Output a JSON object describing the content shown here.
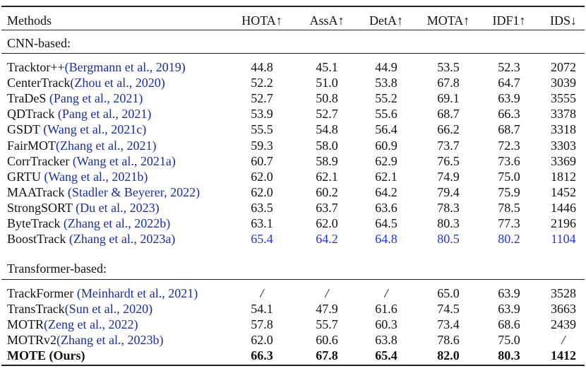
{
  "headers": [
    "Methods",
    "HOTA↑",
    "AssA↑",
    "DetA↑",
    "MOTA↑",
    "IDF1↑",
    "IDS↓"
  ],
  "sections": [
    {
      "title": "CNN-based:",
      "rows": [
        {
          "name": "Tracktor++",
          "cite": "(Bergmann et al., 2019)",
          "values": [
            "44.8",
            "45.1",
            "44.9",
            "53.5",
            "52.3",
            "2072"
          ]
        },
        {
          "name": "CenterTrack",
          "cite": "(Zhou et al., 2020)",
          "values": [
            "52.2",
            "51.0",
            "53.8",
            "67.8",
            "64.7",
            "3039"
          ]
        },
        {
          "name": "TraDeS ",
          "cite": "(Pang et al., 2021)",
          "values": [
            "52.7",
            "50.8",
            "55.2",
            "69.1",
            "63.9",
            "3555"
          ]
        },
        {
          "name": "QDTrack ",
          "cite": "(Pang et al., 2021)",
          "values": [
            "53.9",
            "52.7",
            "55.6",
            "68.7",
            "66.3",
            "3378"
          ]
        },
        {
          "name": "GSDT ",
          "cite": "(Wang et al., 2021c)",
          "values": [
            "55.5",
            "54.8",
            "56.4",
            "66.2",
            "68.7",
            "3318"
          ]
        },
        {
          "name": "FairMOT",
          "cite": "(Zhang et al., 2021)",
          "values": [
            "59.3",
            "58.0",
            "60.9",
            "73.7",
            "72.3",
            "3303"
          ]
        },
        {
          "name": "CorrTracker ",
          "cite": "(Wang et al., 2021a)",
          "values": [
            "60.7",
            "58.9",
            "62.9",
            "76.5",
            "73.6",
            "3369"
          ]
        },
        {
          "name": "GRTU ",
          "cite": "(Wang et al., 2021b)",
          "values": [
            "62.0",
            "62.1",
            "62.1",
            "74.9",
            "75.0",
            "1812"
          ]
        },
        {
          "name": "MAATrack ",
          "cite": "(Stadler & Beyerer, 2022)",
          "values": [
            "62.0",
            "60.2",
            "64.2",
            "79.4",
            "75.9",
            "1452"
          ]
        },
        {
          "name": "StrongSORT ",
          "cite": "(Du et al., 2023)",
          "values": [
            "63.5",
            "63.7",
            "63.6",
            "78.3",
            "78.5",
            "1446"
          ]
        },
        {
          "name": "ByteTrack ",
          "cite": "(Zhang et al., 2022b)",
          "values": [
            "63.1",
            "62.0",
            "64.5",
            "80.3",
            "77.3",
            "2196"
          ]
        },
        {
          "name": "BoostTrack ",
          "cite": "(Zhang et al., 2023a)",
          "values": [
            "65.4",
            "64.2",
            "64.8",
            "80.5",
            "80.2",
            "1104"
          ],
          "highlight": true
        }
      ]
    },
    {
      "title": "Transformer-based:",
      "rows": [
        {
          "name": "TrackFormer ",
          "cite": "(Meinhardt et al., 2021)",
          "values": [
            "/",
            "/",
            "/",
            "65.0",
            "63.9",
            "3528"
          ]
        },
        {
          "name": "TransTrack",
          "cite": "(Sun et al., 2020)",
          "values": [
            "54.1",
            "47.9",
            "61.6",
            "74.5",
            "63.9",
            "3663"
          ]
        },
        {
          "name": "MOTR",
          "cite": "(Zeng et al., 2022)",
          "values": [
            "57.8",
            "55.7",
            "60.3",
            "73.4",
            "68.6",
            "2439"
          ]
        },
        {
          "name": "MOTRv2",
          "cite": "(Zhang et al., 2023b)",
          "values": [
            "62.0",
            "60.6",
            "63.8",
            "78.6",
            "75.0",
            "/"
          ]
        },
        {
          "name": "MOTE (Ours)",
          "cite": "",
          "values": [
            "66.3",
            "67.8",
            "65.4",
            "82.0",
            "80.3",
            "1412"
          ],
          "bold": true
        }
      ]
    }
  ]
}
